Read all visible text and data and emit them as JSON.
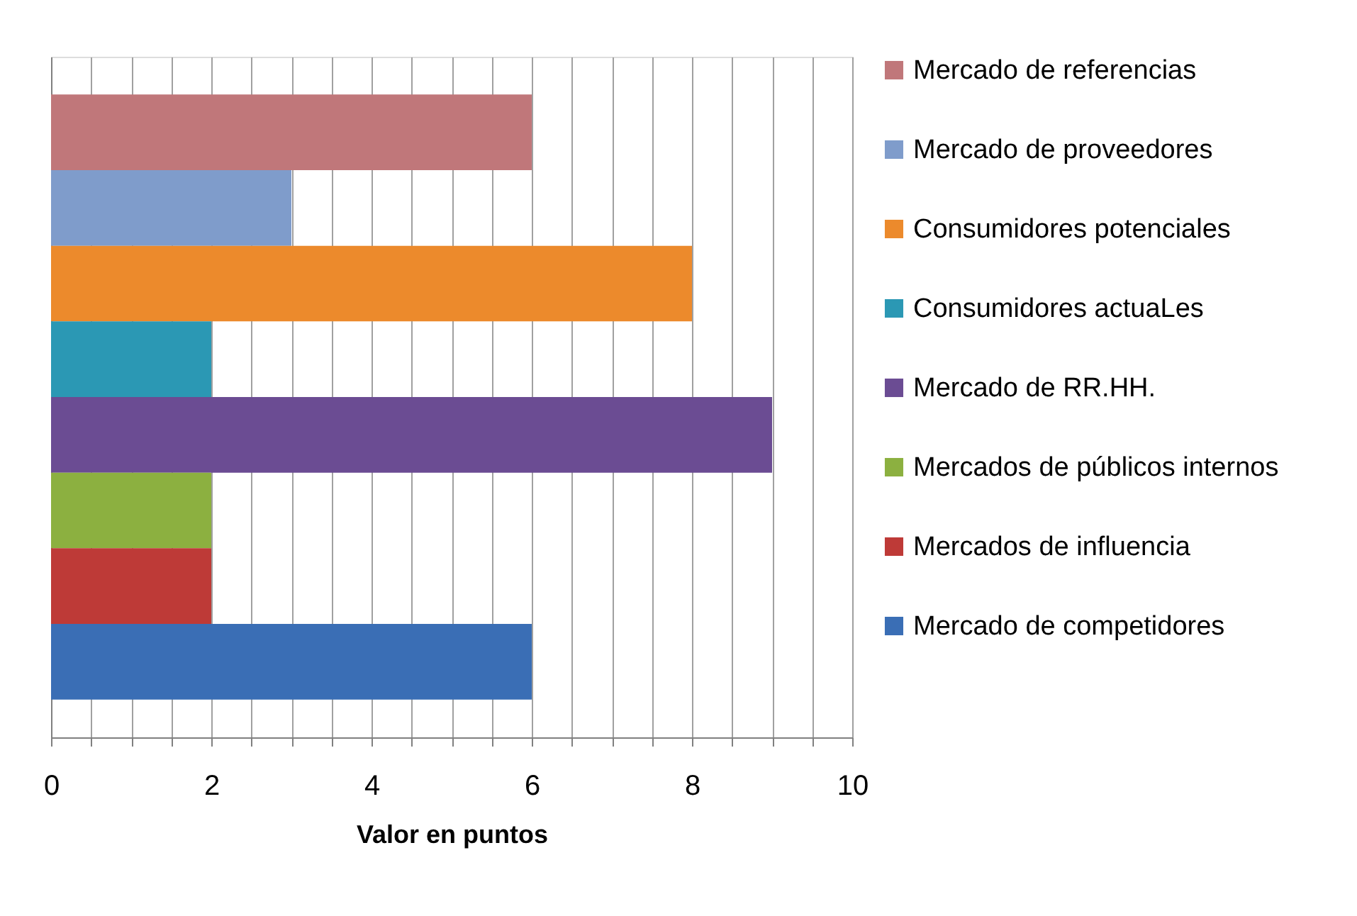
{
  "chart_data": {
    "type": "bar",
    "orientation": "horizontal",
    "xlabel": "Valor en puntos",
    "categories": [
      null,
      null,
      null,
      null,
      null,
      null,
      null,
      null
    ],
    "series": [
      {
        "name": "Mercado de referencias",
        "color": "#c0777a",
        "values": [
          6,
          null,
          null,
          null,
          null,
          null,
          null,
          null
        ]
      },
      {
        "name": "Mercado de proveedores",
        "color": "#7f9ccb",
        "values": [
          null,
          3,
          null,
          null,
          null,
          null,
          null,
          null
        ]
      },
      {
        "name": "Consumidores potenciales",
        "color": "#ec8a2c",
        "values": [
          null,
          null,
          8,
          null,
          null,
          null,
          null,
          null
        ]
      },
      {
        "name": "Consumidores actuaLes",
        "color": "#2b98b4",
        "values": [
          null,
          null,
          null,
          2,
          null,
          null,
          null,
          null
        ]
      },
      {
        "name": "Mercado de RR.HH.",
        "color": "#6b4c93",
        "values": [
          null,
          null,
          null,
          null,
          9,
          null,
          null,
          null
        ]
      },
      {
        "name": "Mercados de públicos internos",
        "color": "#8cb040",
        "values": [
          null,
          null,
          null,
          null,
          null,
          2,
          null,
          null
        ]
      },
      {
        "name": "Mercados de influencia",
        "color": "#be3a37",
        "values": [
          null,
          null,
          null,
          null,
          null,
          null,
          2,
          null
        ]
      },
      {
        "name": "Mercado de competidores",
        "color": "#3a6eb5",
        "values": [
          null,
          null,
          null,
          null,
          null,
          null,
          null,
          6
        ]
      }
    ],
    "xlim": [
      0,
      10
    ],
    "xticks": [
      0,
      {
        "value": 0.5,
        "label": null
      },
      {
        "value": 1,
        "label": null
      },
      {
        "value": 1.5,
        "label": null
      },
      2,
      {
        "value": 2.5,
        "label": null
      },
      {
        "value": 3,
        "label": null
      },
      {
        "value": 3.5,
        "label": null
      },
      4,
      {
        "value": 4.5,
        "label": null
      },
      {
        "value": 5,
        "label": null
      },
      {
        "value": 5.5,
        "label": null
      },
      6,
      {
        "value": 6.5,
        "label": null
      },
      {
        "value": 7,
        "label": null
      },
      {
        "value": 7.5,
        "label": null
      },
      8,
      {
        "value": 8.5,
        "label": null
      },
      {
        "value": 9,
        "label": null
      },
      {
        "value": 9.5,
        "label": null
      },
      10
    ],
    "grid": "x",
    "legend": "right",
    "tick_labels": "x"
  }
}
